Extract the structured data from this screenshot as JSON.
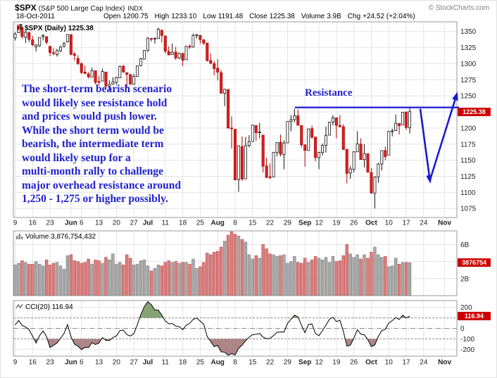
{
  "meta": {
    "copyright": "© StockCharts.com"
  },
  "header": {
    "symbol": "$SPX",
    "name": "(S&P 500 Large Cap Index)",
    "exchange": "INDX",
    "date": "18-Oct-2011",
    "quote": [
      {
        "label": "Open",
        "value": "1200.75"
      },
      {
        "label": "High",
        "value": "1233.10"
      },
      {
        "label": "Low",
        "value": "1191.48"
      },
      {
        "label": "Close",
        "value": "1225.38"
      },
      {
        "label": "Volume",
        "value": "3.9B"
      },
      {
        "label": "Chg",
        "value": "+24.52 (+2.04%)"
      }
    ]
  },
  "main_panel": {
    "label": "$SPX (Daily) 1225.38",
    "price_tag": "1225.38"
  },
  "volume_panel": {
    "label": "Volume 3,876,754,432",
    "value_tag": "3876754"
  },
  "cci_panel": {
    "label": "CCI(20) 116.94",
    "value_tag": "116.94"
  },
  "annotation": {
    "lines": [
      "The short-term bearish scenario",
      "would likely see resistance hold",
      "and prices would push lower.",
      "While the short term would be",
      "bearish, the intermediate term",
      "would likely setup for a",
      "multi-month rally to challenge",
      "major overhead resistance around",
      "1,250 - 1,275 or higher possibly."
    ],
    "resistance_label": "Resistance"
  },
  "colors": {
    "grid": "#e4e4e4",
    "frame": "#999999",
    "candle_up_fill": "#ffffff",
    "candle_up_stroke": "#111111",
    "candle_down_fill": "#dd2222",
    "candle_down_stroke": "#aa0000",
    "volume_up_fill": "#a8a8a8",
    "volume_up_stroke": "#7d7d7d",
    "volume_down_fill": "#d98080",
    "volume_down_stroke": "#bb4444",
    "cci_line": "#000000",
    "cci_fill_up": "#7f9e70",
    "cci_fill_down": "#a98080",
    "annotation_blue": "#2222cc",
    "arrow_blue": "#1a1acc",
    "tag_bg": "#cc0000"
  },
  "chart_data": {
    "type": "candlestick",
    "title": "$SPX (Daily)",
    "last_close": 1225.38,
    "last_volume": "3,876,754,432",
    "cci_period": 20,
    "cci_last": 116.94,
    "total_slots": 127,
    "x_ticks": [
      {
        "slot": 0,
        "label": "9"
      },
      {
        "slot": 5,
        "label": "16"
      },
      {
        "slot": 10,
        "label": "23"
      },
      {
        "slot": 16,
        "label": "Jun",
        "bold": true
      },
      {
        "slot": 19,
        "label": "6"
      },
      {
        "slot": 24,
        "label": "13"
      },
      {
        "slot": 29,
        "label": "20"
      },
      {
        "slot": 34,
        "label": "27"
      },
      {
        "slot": 38,
        "label": "Jul",
        "bold": true
      },
      {
        "slot": 43,
        "label": "11"
      },
      {
        "slot": 48,
        "label": "18"
      },
      {
        "slot": 53,
        "label": "25"
      },
      {
        "slot": 58,
        "label": "Aug",
        "bold": true
      },
      {
        "slot": 63,
        "label": "8"
      },
      {
        "slot": 68,
        "label": "15"
      },
      {
        "slot": 73,
        "label": "22"
      },
      {
        "slot": 78,
        "label": "29"
      },
      {
        "slot": 83,
        "label": "Sep",
        "bold": true
      },
      {
        "slot": 87,
        "label": "12"
      },
      {
        "slot": 92,
        "label": "19"
      },
      {
        "slot": 97,
        "label": "26"
      },
      {
        "slot": 102,
        "label": "Oct",
        "bold": true
      },
      {
        "slot": 107,
        "label": "10"
      },
      {
        "slot": 112,
        "label": "17"
      },
      {
        "slot": 117,
        "label": "24"
      },
      {
        "slot": 123,
        "label": "Nov",
        "bold": true
      }
    ],
    "price_axis": {
      "range": [
        1061,
        1365
      ],
      "ticks": [
        1350,
        1325,
        1300,
        1275,
        1250,
        1225,
        1200,
        1175,
        1150,
        1125,
        1100,
        1075
      ]
    },
    "volume_axis": {
      "max": 7.6,
      "ticks": [
        {
          "v": 6,
          "label": "6B"
        },
        {
          "v": 4,
          "label": "4B"
        },
        {
          "v": 2,
          "label": "2B"
        }
      ]
    },
    "cci_axis": {
      "half_range": 265,
      "clamp": 255,
      "ticks": [
        200,
        100,
        0,
        -100,
        -200
      ],
      "dashed": [
        100,
        -100
      ]
    },
    "resistance_level": 1232,
    "seed_closes": [
      1324,
      1314,
      1316,
      1319,
      1320,
      1306,
      1312,
      1330,
      1337,
      1337,
      1335,
      1347,
      1356,
      1360,
      1363,
      1361,
      1356,
      1347,
      1335,
      1340
    ],
    "candles": [
      [
        1340,
        1349,
        1336,
        1346.3,
        3.6
      ],
      [
        1348,
        1359,
        1348,
        1357.2,
        3.8
      ],
      [
        1356,
        1357,
        1339,
        1342.1,
        4.1
      ],
      [
        1341,
        1351,
        1332,
        1348.7,
        3.9
      ],
      [
        1348,
        1350,
        1333,
        1337.8,
        3.7
      ],
      [
        1337,
        1343,
        1327,
        1329.5,
        3.7
      ],
      [
        1326,
        1330,
        1319,
        1329,
        4.0
      ],
      [
        1328,
        1341,
        1326,
        1340.7,
        3.7
      ],
      [
        1342,
        1346,
        1336,
        1343.6,
        3.5
      ],
      [
        1342,
        1342,
        1330,
        1333.3,
        4.2
      ],
      [
        1327,
        1327,
        1312,
        1317.4,
        3.6
      ],
      [
        1317,
        1324,
        1313,
        1316.3,
        3.8
      ],
      [
        1314,
        1323,
        1311,
        1320.5,
        3.9
      ],
      [
        1320,
        1328,
        1318,
        1325.7,
        3.5
      ],
      [
        1327,
        1334,
        1325,
        1331.1,
        3.1
      ],
      [
        1334,
        1346,
        1333,
        1345.2,
        4.7
      ],
      [
        1345,
        1346,
        1313,
        1314.6,
        4.8
      ],
      [
        1315,
        1318,
        1305,
        1312.9,
        4.1
      ],
      [
        1308,
        1313,
        1298,
        1300.2,
        4.0
      ],
      [
        1300,
        1302,
        1284,
        1286.2,
        3.8
      ],
      [
        1287,
        1297,
        1284,
        1284.9,
        3.9
      ],
      [
        1284,
        1287,
        1277,
        1279.6,
        4.3
      ],
      [
        1279,
        1294,
        1279,
        1289,
        3.7
      ],
      [
        1289,
        1289,
        1268,
        1271,
        4.2
      ],
      [
        1272,
        1281,
        1266,
        1271.8,
        4.1
      ],
      [
        1273,
        1292,
        1273,
        1287.9,
        3.8
      ],
      [
        1287,
        1287,
        1261,
        1265.4,
        4.5
      ],
      [
        1265,
        1274,
        1258,
        1267.6,
        4.2
      ],
      [
        1268,
        1279,
        1267,
        1271.5,
        4.9
      ],
      [
        1271,
        1280,
        1267,
        1278.4,
        3.7
      ],
      [
        1278,
        1297,
        1278,
        1295.5,
        3.9
      ],
      [
        1296,
        1298,
        1286,
        1287.1,
        3.6
      ],
      [
        1286,
        1286,
        1262,
        1283.5,
        4.8
      ],
      [
        1283,
        1284,
        1267,
        1268.5,
        4.4
      ],
      [
        1268,
        1284,
        1268,
        1280.1,
        3.6
      ],
      [
        1280,
        1297,
        1280,
        1296.7,
        3.7
      ],
      [
        1297,
        1309,
        1296,
        1307.4,
        4.1
      ],
      [
        1307,
        1321,
        1307,
        1320.6,
        4.2
      ],
      [
        1321,
        1341,
        1318,
        1339.7,
        3.5
      ],
      [
        1339,
        1340,
        1334,
        1337.9,
        2.9
      ],
      [
        1338,
        1341,
        1331,
        1339.2,
        3.2
      ],
      [
        1339,
        1356,
        1339,
        1353.2,
        3.6
      ],
      [
        1352,
        1352,
        1333,
        1343.8,
        3.5
      ],
      [
        1343,
        1343,
        1316,
        1319.5,
        3.9
      ],
      [
        1319,
        1327,
        1313,
        1313.6,
        4.1
      ],
      [
        1314,
        1331,
        1314,
        1317.7,
        3.9
      ],
      [
        1318,
        1326,
        1306,
        1308.9,
        4.0
      ],
      [
        1309,
        1317,
        1307,
        1316.1,
        3.8
      ],
      [
        1316,
        1316,
        1296,
        1305.4,
        3.9
      ],
      [
        1306,
        1328,
        1306,
        1326.7,
        3.9
      ],
      [
        1327,
        1330,
        1323,
        1325.8,
        3.7
      ],
      [
        1326,
        1347,
        1325,
        1343.8,
        4.3
      ],
      [
        1344,
        1346,
        1339,
        1345,
        3.2
      ],
      [
        1344,
        1344,
        1331,
        1337.4,
        3.4
      ],
      [
        1337,
        1338,
        1329,
        1331.9,
        3.9
      ],
      [
        1332,
        1332,
        1303,
        1304.9,
        5.0
      ],
      [
        1305,
        1316,
        1299,
        1300.7,
        4.8
      ],
      [
        1300,
        1304,
        1282,
        1292.3,
        5.1
      ],
      [
        1293,
        1307,
        1274,
        1286.9,
        5.2
      ],
      [
        1286,
        1290,
        1254,
        1254.1,
        5.7
      ],
      [
        1254,
        1261,
        1234,
        1260.3,
        6.4
      ],
      [
        1260,
        1260,
        1199,
        1200.1,
        7.1
      ],
      [
        1200,
        1218,
        1168,
        1199.4,
        7.5
      ],
      [
        1198,
        1198,
        1119,
        1119.5,
        7.2
      ],
      [
        1120,
        1173,
        1101,
        1172.5,
        7.0
      ],
      [
        1171,
        1187,
        1118,
        1120.8,
        6.6
      ],
      [
        1121,
        1186,
        1121,
        1172.6,
        6.3
      ],
      [
        1173,
        1189,
        1170,
        1178.8,
        4.8
      ],
      [
        1179,
        1205,
        1179,
        1204.5,
        4.3
      ],
      [
        1204,
        1204,
        1180,
        1192.8,
        4.7
      ],
      [
        1193,
        1208,
        1184,
        1193.9,
        4.4
      ],
      [
        1189,
        1189,
        1131,
        1140.7,
        6.0
      ],
      [
        1141,
        1154,
        1122,
        1123.5,
        5.5
      ],
      [
        1124,
        1145,
        1121,
        1123.8,
        4.9
      ],
      [
        1124,
        1162,
        1124,
        1162.4,
        4.8
      ],
      [
        1162,
        1178,
        1156,
        1177.6,
        4.6
      ],
      [
        1178,
        1190,
        1156,
        1159.3,
        4.7
      ],
      [
        1159,
        1181,
        1136,
        1176.8,
        4.8
      ],
      [
        1177,
        1210,
        1177,
        1210.1,
        3.8
      ],
      [
        1210,
        1220,
        1195,
        1212.9,
        4.0
      ],
      [
        1213,
        1230,
        1209,
        1218.9,
        4.6
      ],
      [
        1219,
        1229,
        1204,
        1204.4,
        3.9
      ],
      [
        1204,
        1204,
        1170,
        1174,
        3.8
      ],
      [
        1174,
        1174,
        1140,
        1165.2,
        4.4
      ],
      [
        1165,
        1199,
        1165,
        1198.6,
        3.9
      ],
      [
        1199,
        1204,
        1183,
        1185.9,
        4.2
      ],
      [
        1186,
        1186,
        1148,
        1154.2,
        4.6
      ],
      [
        1154,
        1163,
        1136,
        1162.3,
        4.4
      ],
      [
        1162,
        1176,
        1157,
        1172.9,
        4.2
      ],
      [
        1173,
        1202,
        1162,
        1188.7,
        4.5
      ],
      [
        1189,
        1209,
        1189,
        1209.1,
        3.9
      ],
      [
        1209,
        1220,
        1204,
        1216,
        4.6
      ],
      [
        1216,
        1216,
        1184,
        1204.1,
        4.0
      ],
      [
        1204,
        1220,
        1201,
        1202.1,
        4.1
      ],
      [
        1202,
        1206,
        1166,
        1166.8,
        4.7
      ],
      [
        1167,
        1167,
        1114,
        1129.6,
        6.0
      ],
      [
        1130,
        1141,
        1121,
        1136.4,
        4.9
      ],
      [
        1136,
        1164,
        1131,
        1163,
        4.5
      ],
      [
        1163,
        1195,
        1163,
        1175.4,
        4.8
      ],
      [
        1175,
        1184,
        1151,
        1151.1,
        4.3
      ],
      [
        1151,
        1175,
        1139,
        1160.4,
        4.8
      ],
      [
        1160,
        1160,
        1131,
        1131.4,
        4.4
      ],
      [
        1131,
        1138,
        1098,
        1099.2,
        5.1
      ],
      [
        1099,
        1125,
        1074.8,
        1124,
        5.7
      ],
      [
        1124,
        1146,
        1115,
        1144,
        4.8
      ],
      [
        1144,
        1165,
        1134,
        1165,
        4.5
      ],
      [
        1165,
        1171,
        1150,
        1155.5,
        4.6
      ],
      [
        1158,
        1195,
        1158,
        1194.9,
        3.4
      ],
      [
        1195,
        1199,
        1187,
        1195.5,
        3.5
      ],
      [
        1196,
        1221,
        1196,
        1207.3,
        4.4
      ],
      [
        1207,
        1207,
        1190,
        1203.7,
        3.7
      ],
      [
        1205,
        1225,
        1205,
        1224.6,
        3.9
      ],
      [
        1225,
        1225,
        1197,
        1200.9,
        3.9
      ],
      [
        1200.75,
        1233.1,
        1191.48,
        1225.38,
        3.88
      ]
    ]
  }
}
